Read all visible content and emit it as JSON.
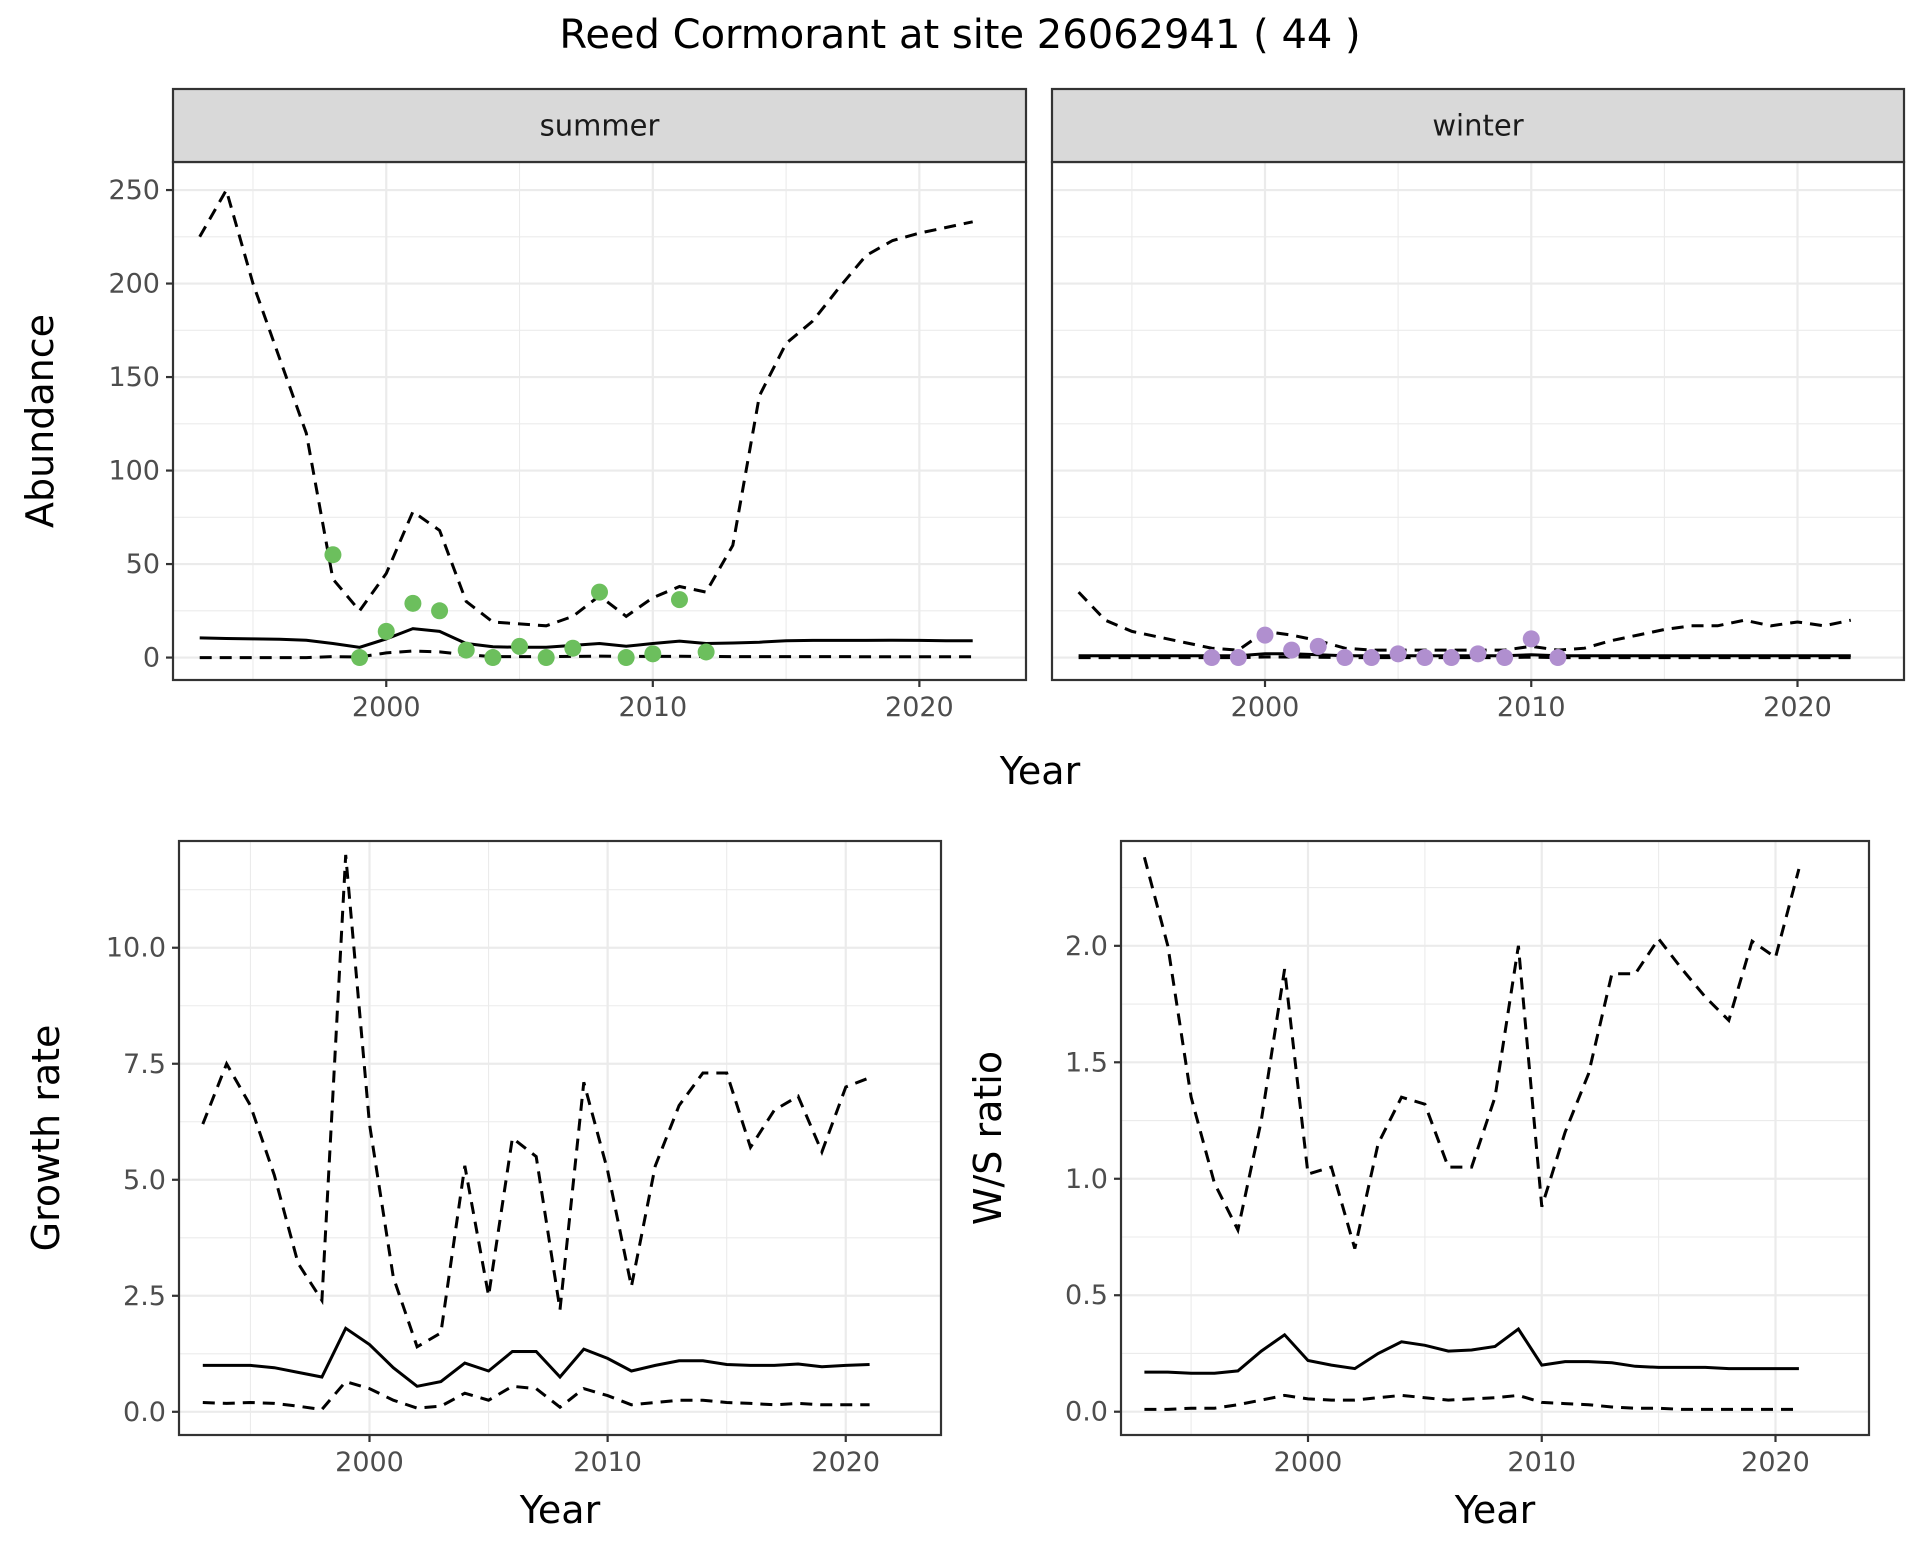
{
  "chart_data": {
    "type": "line",
    "title": "Reed Cormorant at site 26062941 ( 44 )",
    "panels": [
      {
        "id": "summer",
        "strip": "summer",
        "xlabel": "",
        "ylabel": "Abundance",
        "xlim": [
          1992,
          2024
        ],
        "ylim": [
          -12,
          265
        ],
        "x_ticks": [
          2000,
          2010,
          2020
        ],
        "y_ticks": [
          0,
          50,
          100,
          150,
          200,
          250
        ],
        "show_x_title": false,
        "series": [
          {
            "style": "dashed",
            "x": [
              1993,
              1994,
              1995,
              1996,
              1997,
              1998,
              1999,
              2000,
              2001,
              2002,
              2003,
              2004,
              2005,
              2006,
              2007,
              2008,
              2009,
              2010,
              2011,
              2012,
              2013,
              2014,
              2015,
              2016,
              2017,
              2018,
              2019,
              2020,
              2021,
              2022
            ],
            "y": [
              225,
              250,
              200,
              160,
              120,
              42,
              25,
              45,
              78,
              68,
              30,
              19,
              18,
              17,
              22,
              33,
              22,
              32,
              38,
              35,
              60,
              140,
              168,
              180,
              198,
              215,
              223,
              227,
              230,
              233
            ]
          },
          {
            "style": "solid",
            "x": [
              1993,
              1994,
              1995,
              1996,
              1997,
              1998,
              1999,
              2000,
              2001,
              2002,
              2003,
              2004,
              2005,
              2006,
              2007,
              2008,
              2009,
              2010,
              2011,
              2012,
              2013,
              2014,
              2015,
              2016,
              2017,
              2018,
              2019,
              2020,
              2021,
              2022
            ],
            "y": [
              10.5,
              10.2,
              10,
              9.8,
              9.3,
              7.5,
              5.5,
              10,
              15.5,
              14,
              7.5,
              5.8,
              5.5,
              5.5,
              6.5,
              7.5,
              6,
              7.5,
              8.8,
              7.5,
              7.8,
              8.2,
              9,
              9.2,
              9.2,
              9.2,
              9.3,
              9.2,
              9,
              9
            ]
          },
          {
            "style": "dashed",
            "x": [
              1993,
              1994,
              1995,
              1996,
              1997,
              1998,
              1999,
              2000,
              2001,
              2002,
              2003,
              2004,
              2005,
              2006,
              2007,
              2008,
              2009,
              2010,
              2011,
              2012,
              2013,
              2014,
              2015,
              2016,
              2017,
              2018,
              2019,
              2020,
              2021,
              2022
            ],
            "y": [
              0,
              0,
              0,
              0,
              0,
              0.5,
              0.3,
              2.5,
              3.5,
              3,
              1.5,
              0.5,
              0.5,
              0.5,
              0.6,
              0.8,
              0.6,
              0.6,
              0.7,
              0.6,
              0.5,
              0.5,
              0.5,
              0.5,
              0.5,
              0.4,
              0.4,
              0.4,
              0.4,
              0.4
            ]
          }
        ],
        "points": {
          "color": "#6cbf5d",
          "x": [
            1998,
            1999,
            2000,
            2001,
            2002,
            2003,
            2004,
            2005,
            2006,
            2007,
            2008,
            2009,
            2010,
            2011,
            2012
          ],
          "y": [
            55,
            0,
            14,
            29,
            25,
            4,
            0,
            6,
            0,
            5,
            35,
            0,
            2,
            31,
            3
          ]
        }
      },
      {
        "id": "winter",
        "strip": "winter",
        "xlabel": "",
        "ylabel": "",
        "xlim": [
          1992,
          2024
        ],
        "ylim": [
          -12,
          265
        ],
        "x_ticks": [
          2000,
          2010,
          2020
        ],
        "y_ticks": [],
        "show_x_title": false,
        "series": [
          {
            "style": "dashed",
            "x": [
              1993,
              1994,
              1995,
              1996,
              1997,
              1998,
              1999,
              2000,
              2001,
              2002,
              2003,
              2004,
              2005,
              2006,
              2007,
              2008,
              2009,
              2010,
              2011,
              2012,
              2013,
              2014,
              2015,
              2016,
              2017,
              2018,
              2019,
              2020,
              2021,
              2022
            ],
            "y": [
              35,
              20,
              14,
              11,
              8,
              5,
              4,
              14,
              12,
              9,
              5,
              4,
              4,
              4,
              4,
              4,
              4,
              6,
              4,
              5,
              9,
              12,
              15,
              17,
              17,
              20,
              17,
              19,
              17,
              20
            ]
          },
          {
            "style": "solid",
            "x": [
              1993,
              1994,
              1995,
              1996,
              1997,
              1998,
              1999,
              2000,
              2001,
              2002,
              2003,
              2004,
              2005,
              2006,
              2007,
              2008,
              2009,
              2010,
              2011,
              2012,
              2013,
              2014,
              2015,
              2016,
              2017,
              2018,
              2019,
              2020,
              2021,
              2022
            ],
            "y": [
              1,
              1,
              1,
              1,
              1,
              1,
              1,
              2,
              2,
              1.5,
              1,
              1,
              1,
              1,
              1,
              1,
              1,
              1.5,
              1,
              1,
              1,
              1,
              1,
              1,
              1,
              1,
              1,
              1,
              1,
              1
            ]
          },
          {
            "style": "dashed",
            "x": [
              1993,
              1994,
              1995,
              1996,
              1997,
              1998,
              1999,
              2000,
              2001,
              2002,
              2003,
              2004,
              2005,
              2006,
              2007,
              2008,
              2009,
              2010,
              2011,
              2012,
              2013,
              2014,
              2015,
              2016,
              2017,
              2018,
              2019,
              2020,
              2021,
              2022
            ],
            "y": [
              0,
              0,
              0,
              0,
              0,
              0,
              0,
              0.3,
              0.3,
              0.2,
              0,
              0,
              0,
              0,
              0,
              0,
              0,
              0.2,
              0,
              0,
              0,
              0,
              0,
              0,
              0,
              0,
              0,
              0,
              0,
              0
            ]
          }
        ],
        "points": {
          "color": "#b08fcf",
          "x": [
            1998,
            1999,
            2000,
            2001,
            2002,
            2003,
            2004,
            2005,
            2006,
            2007,
            2008,
            2009,
            2010,
            2011
          ],
          "y": [
            0,
            0,
            12,
            4,
            6,
            0,
            0,
            2,
            0,
            0,
            2,
            0,
            10,
            0
          ]
        }
      },
      {
        "id": "growth",
        "strip": "",
        "xlabel": "Year",
        "ylabel": "Growth rate",
        "xlim": [
          1992,
          2024
        ],
        "ylim": [
          -0.5,
          12.3
        ],
        "x_ticks": [
          2000,
          2010,
          2020
        ],
        "y_ticks": [
          0.0,
          2.5,
          5.0,
          7.5,
          10.0
        ],
        "y_tick_labels": [
          "0.0",
          "2.5",
          "5.0",
          "7.5",
          "10.0"
        ],
        "show_x_title": true,
        "series": [
          {
            "style": "dashed",
            "x": [
              1993,
              1994,
              1995,
              1996,
              1997,
              1998,
              1999,
              2000,
              2001,
              2002,
              2003,
              2004,
              2005,
              2006,
              2007,
              2008,
              2009,
              2010,
              2011,
              2012,
              2013,
              2014,
              2015,
              2016,
              2017,
              2018,
              2019,
              2020,
              2021
            ],
            "y": [
              6.2,
              7.5,
              6.6,
              5.1,
              3.2,
              2.4,
              12,
              6.2,
              2.9,
              1.4,
              1.7,
              5.3,
              2.5,
              5.9,
              5.5,
              2.2,
              7.1,
              5.2,
              2.7,
              5.3,
              6.6,
              7.3,
              7.3,
              5.7,
              6.5,
              6.8,
              5.6,
              7,
              7.2
            ]
          },
          {
            "style": "solid",
            "x": [
              1993,
              1994,
              1995,
              1996,
              1997,
              1998,
              1999,
              2000,
              2001,
              2002,
              2003,
              2004,
              2005,
              2006,
              2007,
              2008,
              2009,
              2010,
              2011,
              2012,
              2013,
              2014,
              2015,
              2016,
              2017,
              2018,
              2019,
              2020,
              2021
            ],
            "y": [
              1,
              1,
              1,
              0.95,
              0.85,
              0.75,
              1.8,
              1.45,
              0.95,
              0.55,
              0.65,
              1.05,
              0.88,
              1.3,
              1.3,
              0.75,
              1.35,
              1.15,
              0.88,
              1,
              1.1,
              1.1,
              1.02,
              1,
              1,
              1.03,
              0.97,
              1,
              1.02
            ]
          },
          {
            "style": "dashed",
            "x": [
              1993,
              1994,
              1995,
              1996,
              1997,
              1998,
              1999,
              2000,
              2001,
              2002,
              2003,
              2004,
              2005,
              2006,
              2007,
              2008,
              2009,
              2010,
              2011,
              2012,
              2013,
              2014,
              2015,
              2016,
              2017,
              2018,
              2019,
              2020,
              2021
            ],
            "y": [
              0.2,
              0.18,
              0.2,
              0.18,
              0.12,
              0.05,
              0.65,
              0.5,
              0.25,
              0.08,
              0.12,
              0.4,
              0.25,
              0.55,
              0.5,
              0.1,
              0.5,
              0.35,
              0.15,
              0.2,
              0.25,
              0.25,
              0.2,
              0.18,
              0.15,
              0.18,
              0.15,
              0.15,
              0.15
            ]
          }
        ],
        "points": null
      },
      {
        "id": "ws",
        "strip": "",
        "xlabel": "Year",
        "ylabel": "W/S ratio",
        "xlim": [
          1992,
          2024
        ],
        "ylim": [
          -0.1,
          2.45
        ],
        "x_ticks": [
          2000,
          2010,
          2020
        ],
        "y_ticks": [
          0.0,
          0.5,
          1.0,
          1.5,
          2.0
        ],
        "y_tick_labels": [
          "0.0",
          "0.5",
          "1.0",
          "1.5",
          "2.0"
        ],
        "show_x_title": true,
        "series": [
          {
            "style": "dashed",
            "x": [
              1993,
              1994,
              1995,
              1996,
              1997,
              1998,
              1999,
              2000,
              2001,
              2002,
              2003,
              2004,
              2005,
              2006,
              2007,
              2008,
              2009,
              2010,
              2011,
              2012,
              2013,
              2014,
              2015,
              2016,
              2017,
              2018,
              2019,
              2020,
              2021
            ],
            "y": [
              2.38,
              2,
              1.35,
              0.98,
              0.78,
              1.25,
              1.9,
              1.02,
              1.05,
              0.7,
              1.15,
              1.35,
              1.32,
              1.05,
              1.05,
              1.35,
              2,
              0.88,
              1.2,
              1.45,
              1.88,
              1.88,
              2.03,
              1.9,
              1.78,
              1.68,
              2.02,
              1.95,
              2.33
            ]
          },
          {
            "style": "solid",
            "x": [
              1993,
              1994,
              1995,
              1996,
              1997,
              1998,
              1999,
              2000,
              2001,
              2002,
              2003,
              2004,
              2005,
              2006,
              2007,
              2008,
              2009,
              2010,
              2011,
              2012,
              2013,
              2014,
              2015,
              2016,
              2017,
              2018,
              2019,
              2020,
              2021
            ],
            "y": [
              0.17,
              0.17,
              0.165,
              0.165,
              0.175,
              0.26,
              0.33,
              0.22,
              0.2,
              0.185,
              0.25,
              0.3,
              0.285,
              0.26,
              0.265,
              0.28,
              0.355,
              0.2,
              0.215,
              0.215,
              0.21,
              0.195,
              0.19,
              0.19,
              0.19,
              0.185,
              0.185,
              0.185,
              0.185
            ]
          },
          {
            "style": "dashed",
            "x": [
              1993,
              1994,
              1995,
              1996,
              1997,
              1998,
              1999,
              2000,
              2001,
              2002,
              2003,
              2004,
              2005,
              2006,
              2007,
              2008,
              2009,
              2010,
              2011,
              2012,
              2013,
              2014,
              2015,
              2016,
              2017,
              2018,
              2019,
              2020,
              2021
            ],
            "y": [
              0.01,
              0.01,
              0.015,
              0.015,
              0.03,
              0.05,
              0.07,
              0.055,
              0.05,
              0.05,
              0.06,
              0.07,
              0.06,
              0.05,
              0.055,
              0.06,
              0.07,
              0.04,
              0.035,
              0.03,
              0.02,
              0.015,
              0.015,
              0.01,
              0.01,
              0.01,
              0.01,
              0.01,
              0.01
            ]
          }
        ],
        "points": null
      }
    ],
    "shared_xlabel_top": "Year",
    "grid": true
  }
}
